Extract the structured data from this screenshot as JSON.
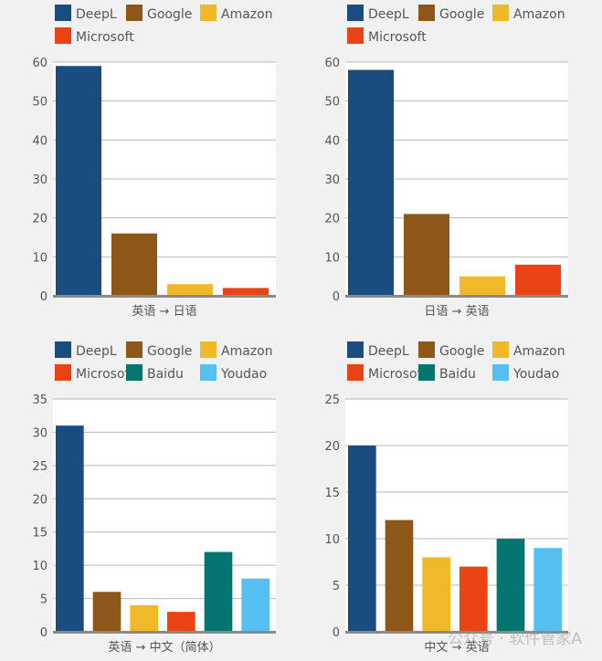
{
  "chart_data": [
    {
      "type": "bar",
      "title": "",
      "xlabel": "英语 → 日语",
      "ylabel": "",
      "ylim": [
        0,
        60
      ],
      "yticks": [
        0,
        10,
        20,
        30,
        40,
        50,
        60
      ],
      "categories": [
        "DeepL",
        "Google",
        "Amazon",
        "Microsoft"
      ],
      "values": [
        59,
        16,
        3,
        2
      ],
      "colors": [
        "#1a4c80",
        "#8c5718",
        "#f0b92a",
        "#ea4316"
      ],
      "legend": [
        "DeepL",
        "Google",
        "Amazon",
        "Microsoft"
      ],
      "grid": true,
      "legend_position": "top"
    },
    {
      "type": "bar",
      "title": "",
      "xlabel": "日语 → 英语",
      "ylabel": "",
      "ylim": [
        0,
        60
      ],
      "yticks": [
        0,
        10,
        20,
        30,
        40,
        50,
        60
      ],
      "categories": [
        "DeepL",
        "Google",
        "Amazon",
        "Microsoft"
      ],
      "values": [
        58,
        21,
        5,
        8
      ],
      "colors": [
        "#1a4c80",
        "#8c5718",
        "#f0b92a",
        "#ea4316"
      ],
      "legend": [
        "DeepL",
        "Google",
        "Amazon",
        "Microsoft"
      ],
      "grid": true,
      "legend_position": "top"
    },
    {
      "type": "bar",
      "title": "",
      "xlabel": "英语 → 中文（简体）",
      "ylabel": "",
      "ylim": [
        0,
        35
      ],
      "yticks": [
        0,
        5,
        10,
        15,
        20,
        25,
        30,
        35
      ],
      "categories": [
        "DeepL",
        "Google",
        "Amazon",
        "Microsoft",
        "Baidu",
        "Youdao"
      ],
      "values": [
        31,
        6,
        4,
        3,
        12,
        8
      ],
      "colors": [
        "#1a4c80",
        "#8c5718",
        "#f0b92a",
        "#ea4316",
        "#057571",
        "#56c1f0"
      ],
      "legend": [
        "DeepL",
        "Google",
        "Amazon",
        "Microsoft",
        "Baidu",
        "Youdao"
      ],
      "grid": true,
      "legend_position": "top"
    },
    {
      "type": "bar",
      "title": "",
      "xlabel": "中文 → 英语",
      "ylabel": "",
      "ylim": [
        0,
        25
      ],
      "yticks": [
        0,
        5,
        10,
        15,
        20,
        25
      ],
      "categories": [
        "DeepL",
        "Google",
        "Amazon",
        "Microsoft",
        "Baidu",
        "Youdao"
      ],
      "values": [
        20,
        12,
        8,
        7,
        10,
        9
      ],
      "colors": [
        "#1a4c80",
        "#8c5718",
        "#f0b92a",
        "#ea4316",
        "#057571",
        "#56c1f0"
      ],
      "legend": [
        "DeepL",
        "Google",
        "Amazon",
        "Microsoft",
        "Baidu",
        "Youdao"
      ],
      "grid": true,
      "legend_position": "top"
    }
  ],
  "watermark": "公众号 · 软件管家A"
}
